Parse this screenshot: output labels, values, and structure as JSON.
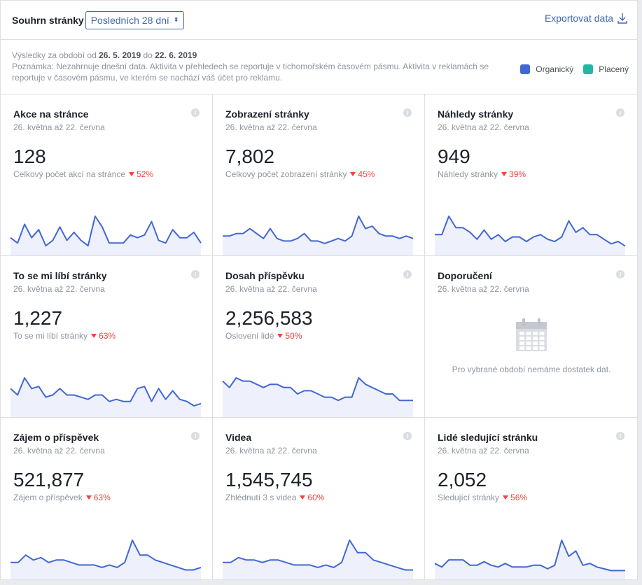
{
  "header": {
    "title": "Souhrn stránky",
    "period": "Posledních 28 dní",
    "export_label": "Exportovat data"
  },
  "info": {
    "range_prefix": "Výsledky za období od",
    "range_from": "26. 5. 2019",
    "range_mid": "do",
    "range_to": "22. 6. 2019",
    "note": "Poznámka: Nezahrnuje dnešní data. Aktivita v přehledech se reportuje v tichomořském časovém pásmu. Aktivita v reklamách se reportuje v časovém pásmu, ve kterém se nachází váš účet pro reklamu."
  },
  "legend": {
    "organic": {
      "label": "Organický",
      "color": "#4267d2"
    },
    "paid": {
      "label": "Placený",
      "color": "#20b8a0"
    }
  },
  "cards": [
    {
      "title": "Akce na stránce",
      "date": "26. května až 22. června",
      "value": "128",
      "sub": "Celkový počet akcí na stránce",
      "delta": "52%",
      "spark": [
        4,
        2,
        9,
        4,
        7,
        1,
        3,
        8,
        3,
        6,
        3,
        1,
        12,
        8,
        2,
        2,
        2,
        5,
        4,
        5,
        10,
        3,
        2,
        7,
        4,
        4,
        6,
        2
      ]
    },
    {
      "title": "Zobrazení stránky",
      "date": "26. května až 22. června",
      "value": "7,802",
      "sub": "Celkový počet zobrazení stránky",
      "delta": "45%",
      "spark": [
        5,
        5,
        6,
        6,
        8,
        6,
        4,
        8,
        4,
        3,
        3,
        4,
        6,
        3,
        3,
        2,
        3,
        4,
        3,
        5,
        13,
        8,
        9,
        6,
        5,
        5,
        4,
        5,
        4
      ]
    },
    {
      "title": "Náhledy stránky",
      "date": "26. května až 22. června",
      "value": "949",
      "sub": "Náhledy stránky",
      "delta": "39%",
      "spark": [
        6,
        6,
        14,
        9,
        9,
        7,
        4,
        8,
        4,
        6,
        3,
        5,
        5,
        3,
        5,
        6,
        4,
        3,
        5,
        12,
        7,
        9,
        6,
        6,
        4,
        2,
        3,
        1
      ]
    },
    {
      "title": "To se mi líbí stránky",
      "date": "26. května až 22. června",
      "value": "1,227",
      "sub": "To se mi líbí stránky",
      "delta": "63%",
      "spark": [
        10,
        7,
        15,
        10,
        11,
        6,
        7,
        10,
        7,
        7,
        6,
        5,
        7,
        7,
        4,
        5,
        4,
        4,
        10,
        11,
        4,
        10,
        5,
        9,
        5,
        4,
        2,
        3
      ]
    },
    {
      "title": "Dosah příspěvku",
      "date": "26. května až 22. června",
      "value": "2,256,583",
      "sub": "Oslovení lidé",
      "delta": "50%",
      "spark": [
        9,
        7,
        10,
        9,
        9,
        8,
        7,
        8,
        8,
        7,
        7,
        5,
        6,
        6,
        5,
        4,
        4,
        3,
        4,
        4,
        10,
        8,
        7,
        6,
        5,
        5,
        3,
        3,
        3
      ]
    },
    {
      "title": "Doporučení",
      "date": "26. května až 22. června",
      "empty_text": "Pro vybrané období nemáme dostatek dat."
    },
    {
      "title": "Zájem o příspěvek",
      "date": "26. května až 22. června",
      "value": "521,877",
      "sub": "Zájem o příspěvek",
      "delta": "63%",
      "spark": [
        4,
        4,
        7,
        5,
        6,
        4,
        5,
        5,
        4,
        3,
        3,
        3,
        2,
        3,
        2,
        4,
        13,
        7,
        7,
        5,
        4,
        3,
        2,
        1,
        1,
        2
      ]
    },
    {
      "title": "Videa",
      "date": "26. května až 22. června",
      "value": "1,545,745",
      "sub": "Zhlédnutí 3 s videa",
      "delta": "60%",
      "spark": [
        4,
        4,
        6,
        5,
        5,
        4,
        5,
        5,
        4,
        3,
        3,
        3,
        2,
        3,
        2,
        4,
        13,
        8,
        8,
        5,
        4,
        3,
        2,
        1,
        1
      ]
    },
    {
      "title": "Lidé sledující stránku",
      "date": "26. května až 22. června",
      "value": "2,052",
      "sub": "Sledující stránky",
      "delta": "56%",
      "spark": [
        5,
        3,
        7,
        7,
        7,
        4,
        4,
        6,
        4,
        3,
        5,
        3,
        3,
        3,
        4,
        4,
        2,
        4,
        18,
        9,
        12,
        4,
        5,
        3,
        2,
        1,
        1,
        1
      ]
    }
  ]
}
